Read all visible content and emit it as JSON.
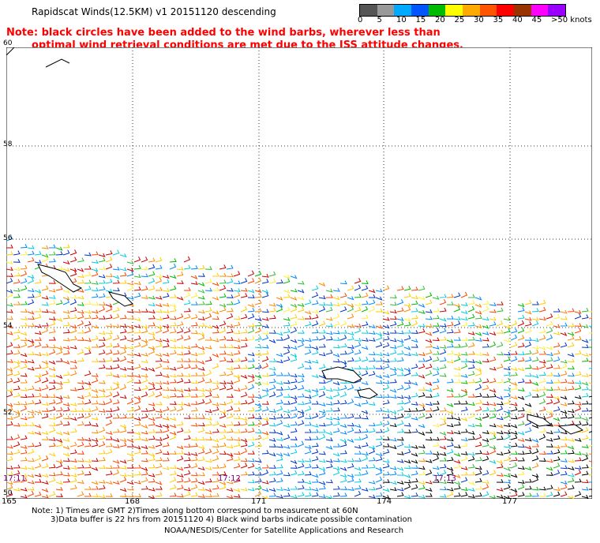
{
  "header": {
    "title": "Rapidscat Winds(12.5KM) v1 20151120 descending",
    "note_line1": "Note: black circles have been added to the wind barbs, wherever less than",
    "note_line2": "optimal wind retrieval conditions are met due to the ISS attitude changes."
  },
  "colorbar": {
    "labels": [
      "0",
      "5",
      "10",
      "15",
      "20",
      "25",
      "30",
      "35",
      "40",
      "45",
      ">50 knots"
    ],
    "colors": [
      "#555555",
      "#999999",
      "#00aaff",
      "#0055ff",
      "#00bb00",
      "#ffff00",
      "#ffaa00",
      "#ff5500",
      "#ff0000",
      "#993300",
      "#ff00ff",
      "#9900ff"
    ]
  },
  "map": {
    "lat_labels": [
      "60",
      "58",
      "56",
      "54",
      "52",
      "50"
    ],
    "lon_labels": [
      "165",
      "168",
      "171",
      "174",
      "177"
    ],
    "time_labels": [
      "17:11",
      "17:12",
      "17:13"
    ]
  },
  "footer": {
    "line1": "Note: 1) Times are GMT 2)Times along bottom correspond to measurement at 60N",
    "line2": "3)Data buffer is 22 hrs from 20151120 4) Black wind barbs indicate possible contamination",
    "line3": "NOAA/NESDIS/Center for Satellite Applications and Research"
  }
}
